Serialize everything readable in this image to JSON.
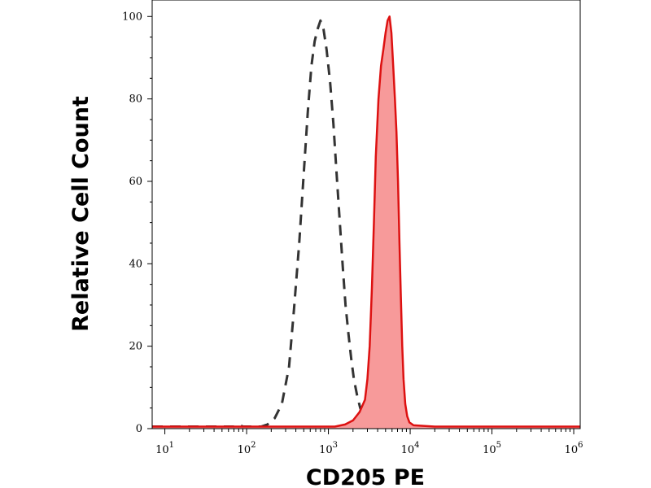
{
  "chart_data": {
    "type": "area",
    "title": "",
    "xlabel": "CD205 PE",
    "ylabel": "Relative Cell Count",
    "x_scale": "log",
    "xlim": [
      7,
      1200000
    ],
    "ylim": [
      0,
      104
    ],
    "grid": false,
    "x_ticks": [
      {
        "base": "10",
        "exp": "1",
        "value": 10
      },
      {
        "base": "10",
        "exp": "2",
        "value": 100
      },
      {
        "base": "10",
        "exp": "3",
        "value": 1000
      },
      {
        "base": "10",
        "exp": "4",
        "value": 10000
      },
      {
        "base": "10",
        "exp": "5",
        "value": 100000
      },
      {
        "base": "10",
        "exp": "6",
        "value": 1000000
      }
    ],
    "y_ticks": [
      {
        "label": "0",
        "value": 0
      },
      {
        "label": "20",
        "value": 20
      },
      {
        "label": "40",
        "value": 40
      },
      {
        "label": "60",
        "value": 60
      },
      {
        "label": "80",
        "value": 80
      },
      {
        "label": "100",
        "value": 100
      }
    ],
    "series": [
      {
        "style": "dashed",
        "color": "#333333",
        "filled": false,
        "points": [
          [
            7,
            0.5
          ],
          [
            70,
            0.5
          ],
          [
            80,
            1
          ],
          [
            90,
            0.5
          ],
          [
            150,
            0.5
          ],
          [
            180,
            1
          ],
          [
            220,
            2.5
          ],
          [
            270,
            6
          ],
          [
            330,
            15
          ],
          [
            380,
            29
          ],
          [
            440,
            45
          ],
          [
            500,
            62
          ],
          [
            560,
            77
          ],
          [
            620,
            88
          ],
          [
            680,
            94
          ],
          [
            740,
            97
          ],
          [
            800,
            99
          ],
          [
            870,
            97
          ],
          [
            950,
            92
          ],
          [
            1050,
            84
          ],
          [
            1150,
            74
          ],
          [
            1260,
            62
          ],
          [
            1380,
            50
          ],
          [
            1500,
            39
          ],
          [
            1620,
            30
          ],
          [
            1760,
            23
          ],
          [
            1900,
            17
          ],
          [
            2050,
            12
          ],
          [
            2250,
            8
          ],
          [
            2450,
            5
          ],
          [
            2700,
            3
          ],
          [
            3000,
            2
          ],
          [
            3300,
            1
          ]
        ]
      },
      {
        "style": "solid",
        "color": "#dd1111",
        "fill": "#f79a9a",
        "filled": true,
        "points": [
          [
            7,
            0.5
          ],
          [
            50,
            0.5
          ],
          [
            800,
            0.5
          ],
          [
            1200,
            0.5
          ],
          [
            1600,
            1
          ],
          [
            2000,
            2
          ],
          [
            2400,
            4
          ],
          [
            2800,
            7
          ],
          [
            3000,
            12
          ],
          [
            3200,
            20
          ],
          [
            3400,
            34
          ],
          [
            3600,
            50
          ],
          [
            3800,
            66
          ],
          [
            4100,
            80
          ],
          [
            4400,
            88
          ],
          [
            4700,
            92
          ],
          [
            5000,
            96
          ],
          [
            5300,
            99
          ],
          [
            5600,
            100
          ],
          [
            5900,
            96
          ],
          [
            6200,
            88
          ],
          [
            6500,
            80
          ],
          [
            6800,
            72
          ],
          [
            7100,
            60
          ],
          [
            7400,
            45
          ],
          [
            7700,
            32
          ],
          [
            8000,
            20
          ],
          [
            8300,
            12
          ],
          [
            8700,
            6
          ],
          [
            9200,
            3
          ],
          [
            9800,
            1.5
          ],
          [
            11000,
            0.8
          ],
          [
            20000,
            0.5
          ],
          [
            1000000,
            0.5
          ],
          [
            1200000,
            0.5
          ]
        ]
      }
    ]
  }
}
